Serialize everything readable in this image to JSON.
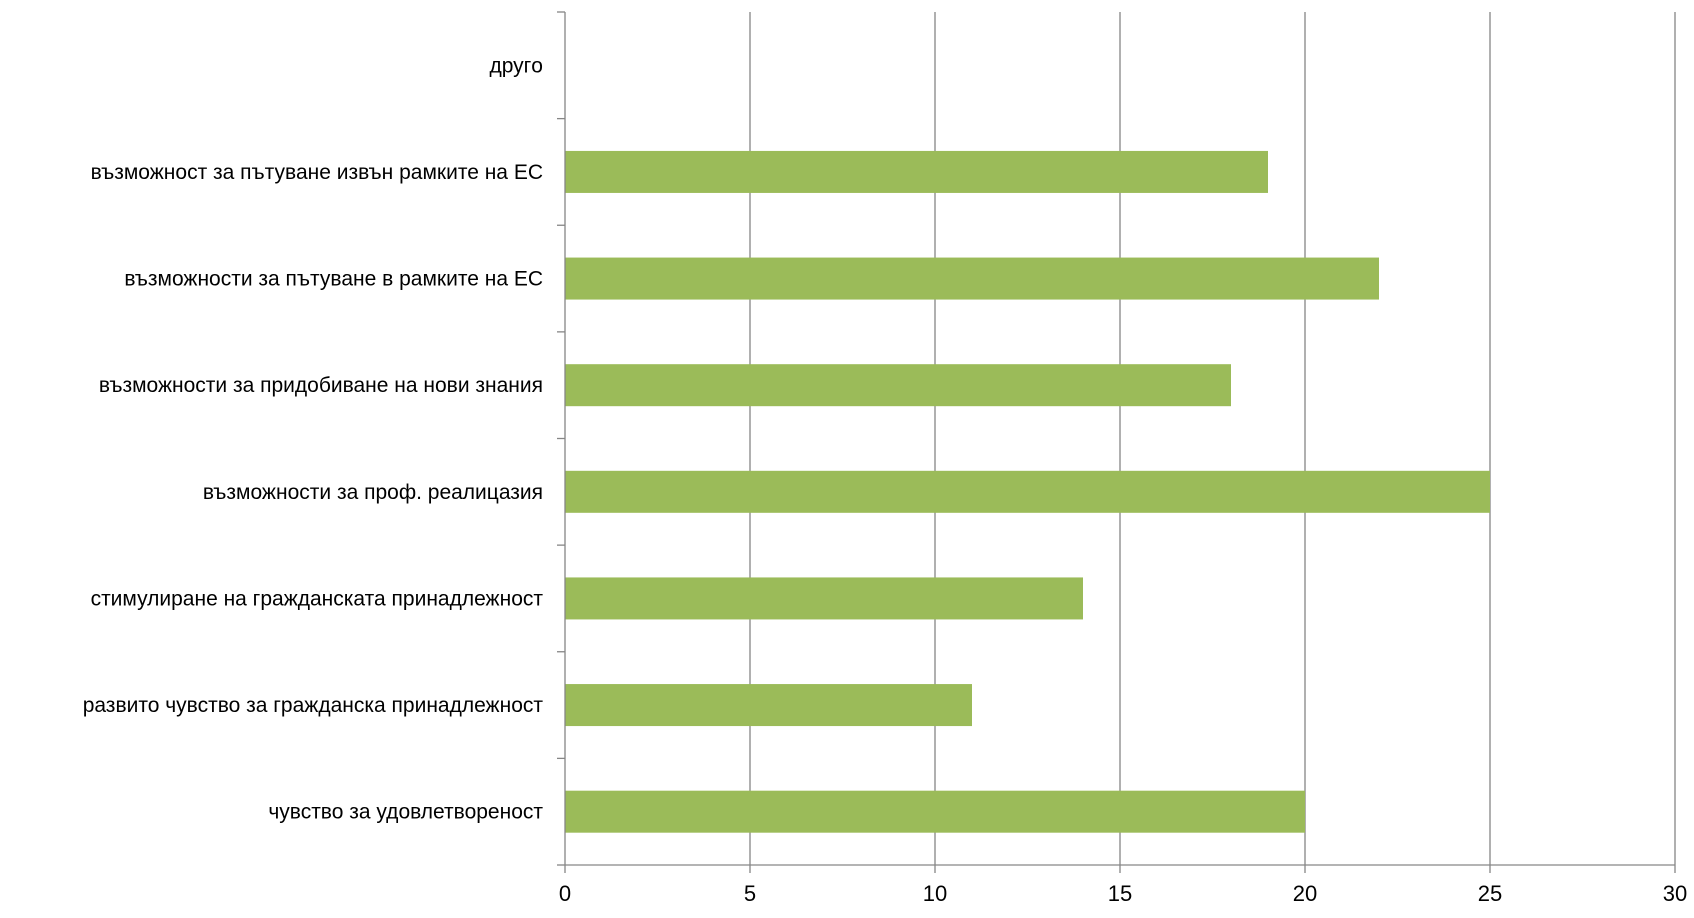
{
  "chart_data": {
    "type": "bar",
    "orientation": "horizontal",
    "categories": [
      "другo",
      "възможност за пътуване извън рамките на ЕС",
      "възможности за пътуване в рамките на ЕС",
      "възможности за придобиване на нови знания",
      "възможности за проф. реалицазия",
      "стимулиране на гражданската принадлежност",
      "развито чувство за гражданска принадлежност",
      "чувство за удовлетвореност"
    ],
    "values": [
      0,
      19,
      22,
      18,
      25,
      14,
      11,
      20
    ],
    "xlim": [
      0,
      30
    ],
    "xticks": [
      "0",
      "5",
      "10",
      "15",
      "20",
      "25",
      "30"
    ],
    "title": "",
    "xlabel": "",
    "ylabel": "",
    "grid": "vertical",
    "legend": "none",
    "colors": {
      "bar": "#9BBB59",
      "gridline": "#868686",
      "axis": "#868686",
      "text": "#000000"
    }
  }
}
